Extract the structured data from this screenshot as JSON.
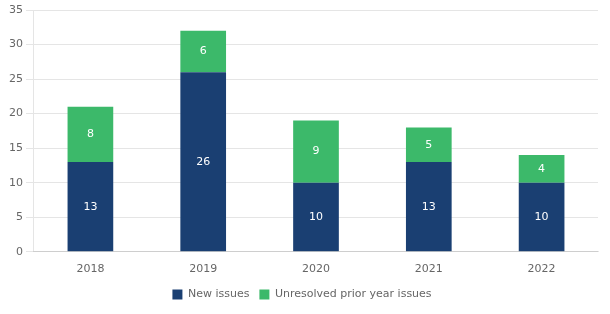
{
  "chart_data": {
    "type": "bar",
    "stacked": true,
    "categories": [
      "2018",
      "2019",
      "2020",
      "2021",
      "2022"
    ],
    "series": [
      {
        "name": "New issues",
        "color": "#1a3f72",
        "values": [
          13,
          26,
          10,
          13,
          10
        ]
      },
      {
        "name": "Unresolved prior year issues",
        "color": "#3cb96a",
        "values": [
          8,
          6,
          9,
          5,
          4
        ]
      }
    ],
    "ylim": [
      0,
      35
    ],
    "yticks": [
      0,
      5,
      10,
      15,
      20,
      25,
      30,
      35
    ],
    "grid": true,
    "legend": "bottom",
    "data_labels": true
  }
}
